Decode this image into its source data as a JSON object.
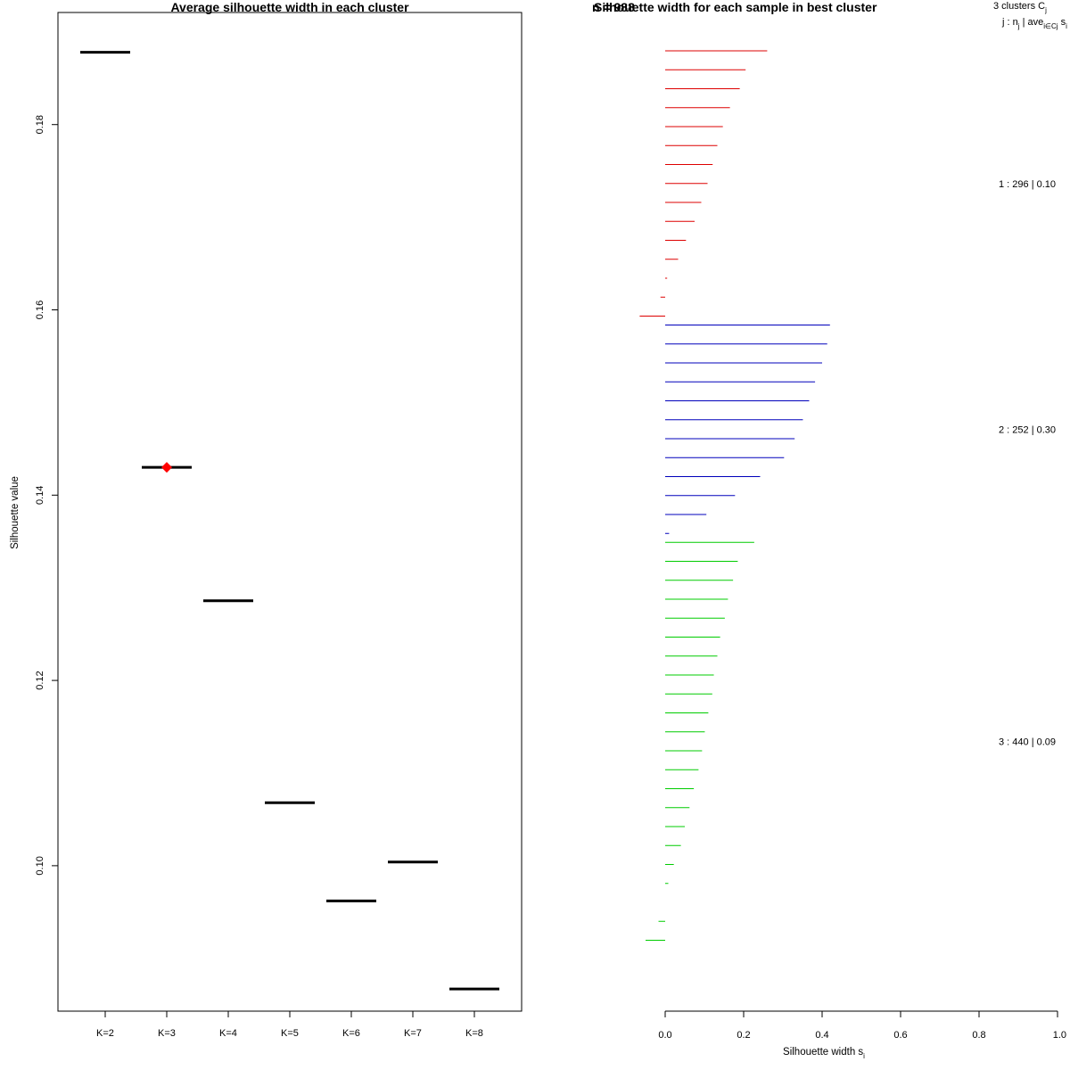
{
  "chart_data": [
    {
      "type": "line",
      "title": "Average silhouette width in each cluster",
      "xlabel": "",
      "ylabel": "Silhouette value",
      "categories": [
        "K=2",
        "K=3",
        "K=4",
        "K=5",
        "K=6",
        "K=7",
        "K=8"
      ],
      "values": [
        0.1878,
        0.143,
        0.1286,
        0.1068,
        0.0962,
        0.1004,
        0.0867
      ],
      "highlight": {
        "category": "K=3",
        "value": 0.143,
        "marker": "diamond",
        "color": "#ff0000"
      },
      "ylim": [
        0.0843,
        0.1921
      ],
      "yticks": [
        0.1,
        0.12,
        0.14,
        0.16,
        0.18
      ],
      "ytick_labels": [
        "0.10",
        "0.12",
        "0.14",
        "0.16",
        "0.18"
      ],
      "grid": false
    },
    {
      "type": "bar",
      "orientation": "horizontal",
      "title": "Silhouette width for each sample in best cluster",
      "title_overlap_text": "n = 988",
      "xlabel": "Silhouette width s",
      "xlabel_subscript": "i",
      "xlim": [
        0,
        1
      ],
      "xticks": [
        0.0,
        0.2,
        0.4,
        0.6,
        0.8,
        1.0
      ],
      "xtick_labels": [
        "0.0",
        "0.2",
        "0.4",
        "0.6",
        "0.8",
        "1.0"
      ],
      "legend_header": {
        "line1": "3  clusters  C",
        "line1_sub": "j",
        "line2_a": "j :  n",
        "line2_sub1": "j",
        "line2_b": " | ave",
        "line2_sub2": "i∈Cj",
        "line2_c": "  s",
        "line2_sub3": "i"
      },
      "series": [
        {
          "name": "1 :  296  |  0.10",
          "color": "#dd0000",
          "values": [
            0.26,
            0.205,
            0.19,
            0.165,
            0.147,
            0.133,
            0.121,
            0.108,
            0.092,
            0.075,
            0.053,
            0.033,
            0.005,
            -0.012,
            -0.065
          ]
        },
        {
          "name": "2 :  252  |  0.30",
          "color": "#0000bb",
          "values": [
            0.42,
            0.413,
            0.4,
            0.382,
            0.367,
            0.351,
            0.33,
            0.303,
            0.242,
            0.178,
            0.105,
            0.01
          ]
        },
        {
          "name": "3 :  440  |  0.09",
          "color": "#00cc00",
          "values": [
            0.227,
            0.185,
            0.173,
            0.16,
            0.152,
            0.14,
            0.133,
            0.124,
            0.12,
            0.11,
            0.101,
            0.094,
            0.085,
            0.073,
            0.062,
            0.05,
            0.04,
            0.022,
            0.008,
            0.0,
            -0.017,
            -0.05
          ]
        }
      ]
    }
  ]
}
